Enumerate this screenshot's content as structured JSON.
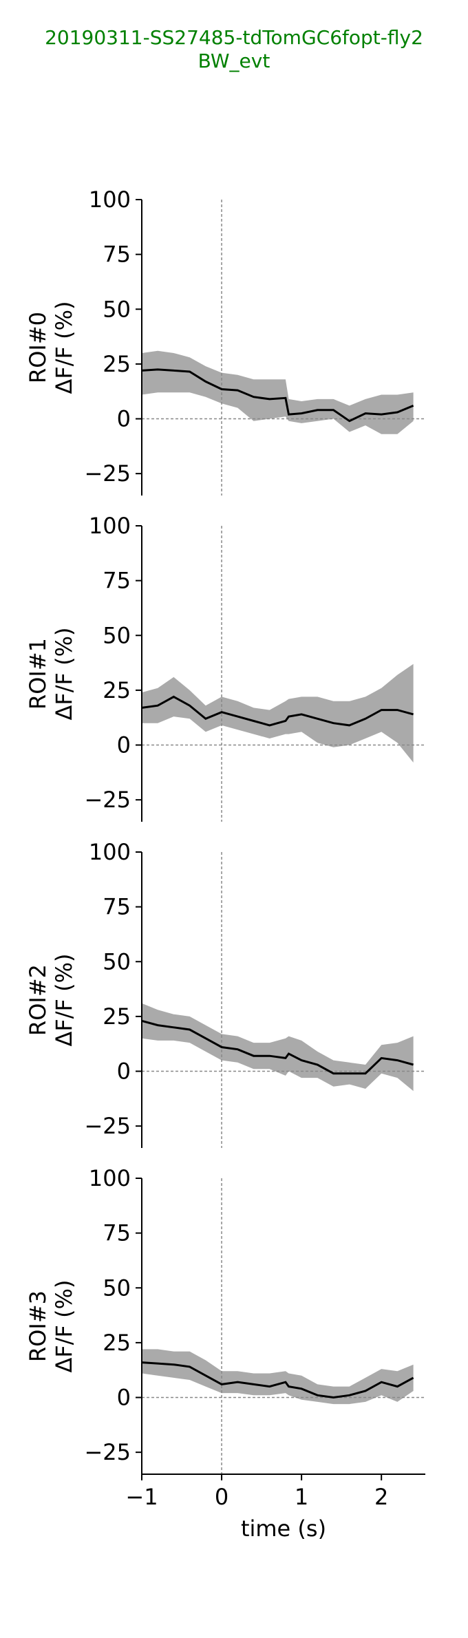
{
  "title": {
    "line1": "20190311-SS27485-tdTomGC6fopt-fly2",
    "line2": "BW_evt"
  },
  "colors": {
    "title": "#008000",
    "band": "#aaaaaa",
    "mean": "#000000",
    "refline": "#888888"
  },
  "chart_data": [
    {
      "type": "line",
      "ylabel_top": "ROI#0",
      "ylabel_bottom": "ΔF/F (%)",
      "xlim": [
        -1,
        2.55
      ],
      "ylim": [
        -35,
        100
      ],
      "yticks": [
        100,
        75,
        50,
        25,
        0,
        -25
      ],
      "yticklabels": [
        "100",
        "75",
        "50",
        "25",
        "0",
        "−25"
      ],
      "x": [
        -1,
        -0.8,
        -0.6,
        -0.4,
        -0.2,
        0,
        0.2,
        0.4,
        0.6,
        0.8,
        0.84,
        1,
        1.2,
        1.4,
        1.6,
        1.8,
        2,
        2.2,
        2.4
      ],
      "mean": [
        22,
        22.5,
        22,
        21.5,
        17,
        13.5,
        13,
        10,
        9,
        9.5,
        2,
        2.5,
        4,
        4,
        -1,
        2.5,
        2,
        3,
        6
      ],
      "upper": [
        30,
        31,
        30,
        28,
        24,
        21,
        20,
        18,
        18,
        18,
        9,
        8,
        9,
        9,
        6,
        9,
        11,
        11,
        12
      ],
      "lower": [
        11,
        12,
        12,
        12,
        10,
        7,
        5,
        -1,
        0,
        1,
        -1,
        -2,
        -1,
        0,
        -6,
        -3,
        -7,
        -7,
        -1
      ]
    },
    {
      "type": "line",
      "ylabel_top": "ROI#1",
      "ylabel_bottom": "ΔF/F (%)",
      "xlim": [
        -1,
        2.55
      ],
      "ylim": [
        -35,
        100
      ],
      "yticks": [
        100,
        75,
        50,
        25,
        0,
        -25
      ],
      "yticklabels": [
        "100",
        "75",
        "50",
        "25",
        "0",
        "−25"
      ],
      "x": [
        -1,
        -0.8,
        -0.6,
        -0.4,
        -0.2,
        0,
        0.2,
        0.4,
        0.6,
        0.8,
        0.84,
        1,
        1.2,
        1.4,
        1.6,
        1.8,
        2,
        2.2,
        2.4
      ],
      "mean": [
        17,
        18,
        22,
        18,
        12,
        15,
        13,
        11,
        9,
        11,
        13,
        14,
        12,
        10,
        9,
        12,
        16,
        16,
        14
      ],
      "upper": [
        24,
        26,
        31,
        25,
        18,
        22,
        20,
        17,
        16,
        20,
        21,
        22,
        22,
        20,
        20,
        22,
        26,
        32,
        37
      ],
      "lower": [
        10,
        10,
        13,
        12,
        6,
        9,
        7,
        5,
        3,
        5,
        5,
        6,
        1,
        -1,
        0,
        3,
        6,
        1,
        -8
      ]
    },
    {
      "type": "line",
      "ylabel_top": "ROI#2",
      "ylabel_bottom": "ΔF/F (%)",
      "xlim": [
        -1,
        2.55
      ],
      "ylim": [
        -35,
        100
      ],
      "yticks": [
        100,
        75,
        50,
        25,
        0,
        -25
      ],
      "yticklabels": [
        "100",
        "75",
        "50",
        "25",
        "0",
        "−25"
      ],
      "x": [
        -1,
        -0.8,
        -0.6,
        -0.4,
        -0.2,
        0,
        0.2,
        0.4,
        0.6,
        0.8,
        0.84,
        1,
        1.2,
        1.4,
        1.6,
        1.8,
        2,
        2.2,
        2.4
      ],
      "mean": [
        23,
        21,
        20,
        19,
        15,
        11,
        10,
        7,
        7,
        6,
        8,
        5,
        3,
        -1,
        -1,
        -1,
        6,
        5,
        3
      ],
      "upper": [
        31,
        28,
        26,
        25,
        21,
        17,
        16,
        13,
        13,
        15,
        16,
        14,
        9,
        5,
        4,
        3,
        12,
        13,
        16
      ],
      "lower": [
        15,
        14,
        14,
        13,
        9,
        5,
        4,
        1,
        1,
        -2,
        0,
        -3,
        -3,
        -7,
        -6,
        -8,
        -1,
        -3,
        -9
      ]
    },
    {
      "type": "line",
      "ylabel_top": "ROI#3",
      "ylabel_bottom": "ΔF/F (%)",
      "xlabel": "time (s)",
      "xlim": [
        -1,
        2.55
      ],
      "ylim": [
        -35,
        100
      ],
      "yticks": [
        100,
        75,
        50,
        25,
        0,
        -25
      ],
      "yticklabels": [
        "100",
        "75",
        "50",
        "25",
        "0",
        "−25"
      ],
      "xticks": [
        -1,
        0,
        1,
        2
      ],
      "xticklabels": [
        "−1",
        "0",
        "1",
        "2"
      ],
      "x": [
        -1,
        -0.8,
        -0.6,
        -0.4,
        -0.2,
        0,
        0.2,
        0.4,
        0.6,
        0.8,
        0.84,
        1,
        1.2,
        1.4,
        1.6,
        1.8,
        2,
        2.2,
        2.4
      ],
      "mean": [
        16,
        15.5,
        15,
        14,
        10,
        6,
        7,
        6,
        5,
        7,
        5,
        4,
        1,
        0,
        1,
        3,
        7,
        5,
        9
      ],
      "upper": [
        22,
        22,
        21,
        21,
        17,
        12,
        12,
        11,
        11,
        12,
        11,
        10,
        6,
        5,
        5,
        9,
        13,
        12,
        15
      ],
      "lower": [
        11,
        10,
        9,
        8,
        5,
        2,
        2,
        1,
        1,
        2,
        1,
        -1,
        -2,
        -3,
        -3,
        -2,
        1,
        -2,
        3
      ]
    }
  ]
}
